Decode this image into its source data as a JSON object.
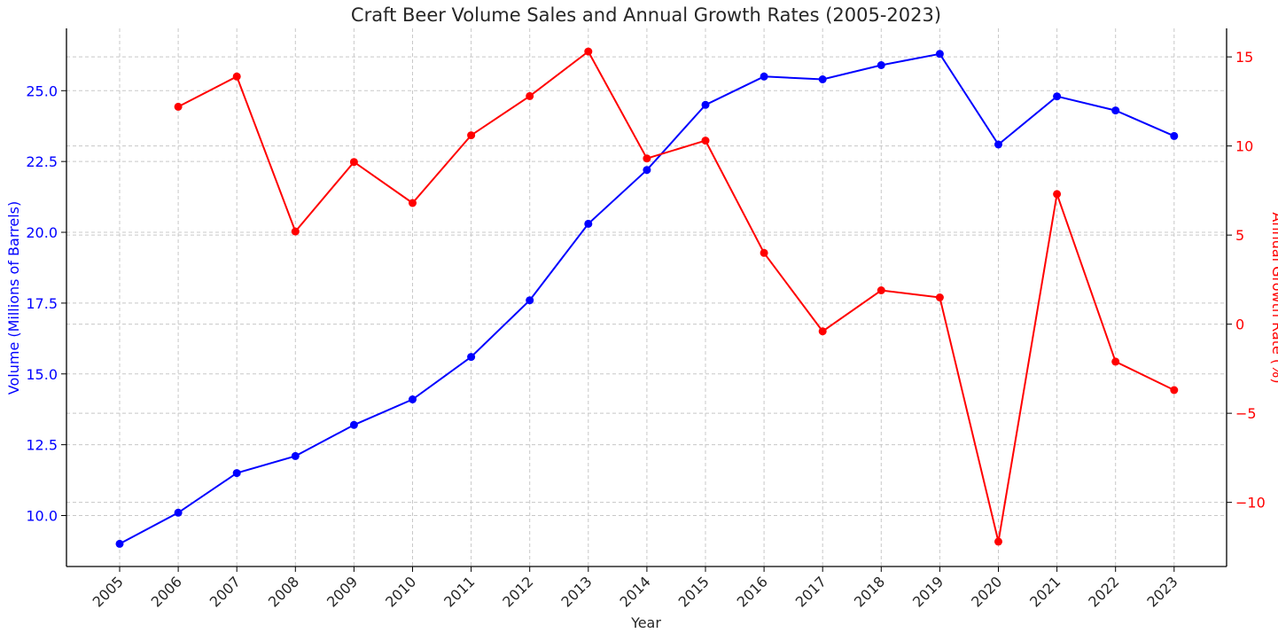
{
  "chart_data": {
    "type": "line",
    "title": "Craft Beer Volume Sales and Annual Growth Rates (2005-2023)",
    "xlabel": "Year",
    "categories": [
      "2005",
      "2006",
      "2007",
      "2008",
      "2009",
      "2010",
      "2011",
      "2012",
      "2013",
      "2014",
      "2015",
      "2016",
      "2017",
      "2018",
      "2019",
      "2020",
      "2021",
      "2022",
      "2023"
    ],
    "grid": true,
    "axes": {
      "left": {
        "label": "Volume (Millions of Barrels)",
        "color": "#0000ff",
        "ylim": [
          8.2,
          27.2
        ],
        "ticks": [
          "10.0",
          "12.5",
          "15.0",
          "17.5",
          "20.0",
          "22.5",
          "25.0"
        ]
      },
      "right": {
        "label": "Annual Growth Rate (%)",
        "color": "#ff0000",
        "ylim": [
          -13.6,
          16.6
        ],
        "ticks": [
          "−10",
          "−5",
          "0",
          "5",
          "10",
          "15"
        ]
      }
    },
    "series": [
      {
        "axis": "left",
        "color": "#0000ff",
        "x": [
          "2005",
          "2006",
          "2007",
          "2008",
          "2009",
          "2010",
          "2011",
          "2012",
          "2013",
          "2014",
          "2015",
          "2016",
          "2017",
          "2018",
          "2019",
          "2020",
          "2021",
          "2022",
          "2023"
        ],
        "values": [
          9.0,
          10.1,
          11.5,
          12.1,
          13.2,
          14.1,
          15.6,
          17.6,
          20.3,
          22.2,
          24.5,
          25.5,
          25.4,
          25.9,
          26.3,
          23.1,
          24.8,
          24.3,
          23.4
        ]
      },
      {
        "axis": "right",
        "color": "#ff0000",
        "x": [
          "2006",
          "2007",
          "2008",
          "2009",
          "2010",
          "2011",
          "2012",
          "2013",
          "2014",
          "2015",
          "2016",
          "2017",
          "2018",
          "2019",
          "2020",
          "2021",
          "2022",
          "2023"
        ],
        "values": [
          12.2,
          13.9,
          5.2,
          9.1,
          6.8,
          10.6,
          12.8,
          15.3,
          9.3,
          10.3,
          4.0,
          -0.4,
          1.9,
          1.5,
          -12.2,
          7.3,
          -2.1,
          -3.7
        ]
      }
    ]
  }
}
